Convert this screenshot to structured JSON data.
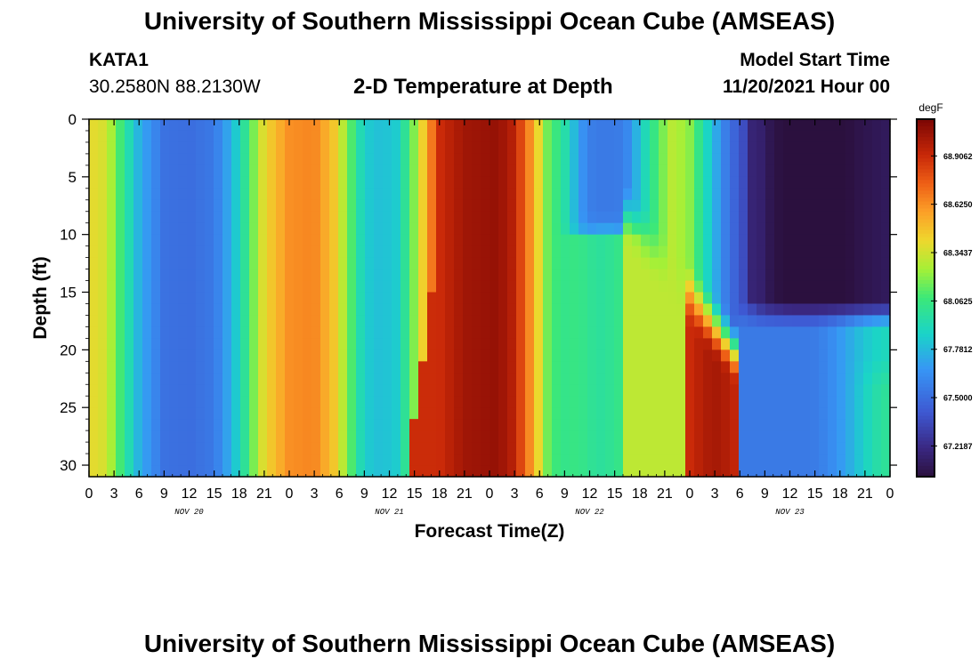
{
  "header": {
    "title": "University of Southern Mississippi Ocean Cube (AMSEAS)",
    "station": "KATA1",
    "coords": "30.2580N  88.2130W",
    "subtitle": "2-D Temperature at Depth",
    "start_label": "Model Start Time",
    "start_value": "11/20/2021 Hour 00"
  },
  "footer": {
    "title": "University of Southern Mississippi Ocean Cube (AMSEAS)"
  },
  "chart_data": {
    "type": "heatmap",
    "title": "2-D Temperature at Depth",
    "xlabel": "Forecast Time(Z)",
    "ylabel": "Depth (ft)",
    "x_unit": "hours from 11/20/2021 00Z",
    "xlim": [
      0,
      96
    ],
    "ylim": [
      0,
      30
    ],
    "y_inverted": true,
    "x_ticks": [
      "0",
      "3",
      "6",
      "9",
      "12",
      "15",
      "18",
      "21",
      "0",
      "3",
      "6",
      "9",
      "12",
      "15",
      "18",
      "21",
      "0",
      "3",
      "6",
      "9",
      "12",
      "15",
      "18",
      "21",
      "0",
      "3",
      "6",
      "9",
      "12",
      "15",
      "18",
      "21",
      "0"
    ],
    "day_labels": [
      {
        "text": "NOV 20",
        "hour": 12
      },
      {
        "text": "NOV 21",
        "hour": 36
      },
      {
        "text": "NOV 22",
        "hour": 60
      },
      {
        "text": "NOV 23",
        "hour": 84
      }
    ],
    "y_ticks": [
      0,
      5,
      10,
      15,
      20,
      25,
      30
    ],
    "colorbar": {
      "unit": "degF",
      "min": 67.04,
      "max": 69.12,
      "labels": [
        "68.9062",
        "68.6250",
        "68.3437",
        "68.0625",
        "67.7812",
        "67.5000",
        "67.2187"
      ],
      "label_values": [
        68.9062,
        68.625,
        68.3437,
        68.0625,
        67.7812,
        67.5,
        67.2187
      ]
    },
    "surface_profile": [
      {
        "hour": 0,
        "temp": 68.4
      },
      {
        "hour": 2,
        "temp": 68.35
      },
      {
        "hour": 4,
        "temp": 68.05
      },
      {
        "hour": 6,
        "temp": 67.75
      },
      {
        "hour": 9,
        "temp": 67.52
      },
      {
        "hour": 12,
        "temp": 67.5
      },
      {
        "hour": 15,
        "temp": 67.55
      },
      {
        "hour": 17,
        "temp": 67.75
      },
      {
        "hour": 19,
        "temp": 68.05
      },
      {
        "hour": 21,
        "temp": 68.4
      },
      {
        "hour": 24,
        "temp": 68.62
      },
      {
        "hour": 27,
        "temp": 68.65
      },
      {
        "hour": 29.5,
        "temp": 68.45
      },
      {
        "hour": 31.5,
        "temp": 68.1
      },
      {
        "hour": 33,
        "temp": 67.85
      },
      {
        "hour": 35,
        "temp": 67.8
      },
      {
        "hour": 37,
        "temp": 67.85
      },
      {
        "hour": 39,
        "temp": 68.2
      },
      {
        "hour": 40.5,
        "temp": 68.55
      },
      {
        "hour": 42,
        "temp": 68.9
      },
      {
        "hour": 45,
        "temp": 69.02
      },
      {
        "hour": 49,
        "temp": 69.05
      },
      {
        "hour": 51,
        "temp": 68.95
      },
      {
        "hour": 53,
        "temp": 68.6
      },
      {
        "hour": 55,
        "temp": 68.15
      },
      {
        "hour": 57,
        "temp": 68.0
      },
      {
        "hour": 59,
        "temp": 67.75
      },
      {
        "hour": 60,
        "temp": 67.62
      },
      {
        "hour": 64,
        "temp": 67.6
      },
      {
        "hour": 66,
        "temp": 67.9
      },
      {
        "hour": 68,
        "temp": 68.1
      },
      {
        "hour": 70,
        "temp": 68.3
      },
      {
        "hour": 72,
        "temp": 68.2
      },
      {
        "hour": 74,
        "temp": 67.9
      },
      {
        "hour": 76,
        "temp": 67.6
      },
      {
        "hour": 78,
        "temp": 67.4
      },
      {
        "hour": 81,
        "temp": 67.15
      },
      {
        "hour": 84,
        "temp": 67.08
      },
      {
        "hour": 90,
        "temp": 67.08
      },
      {
        "hour": 96,
        "temp": 67.12
      }
    ]
  }
}
